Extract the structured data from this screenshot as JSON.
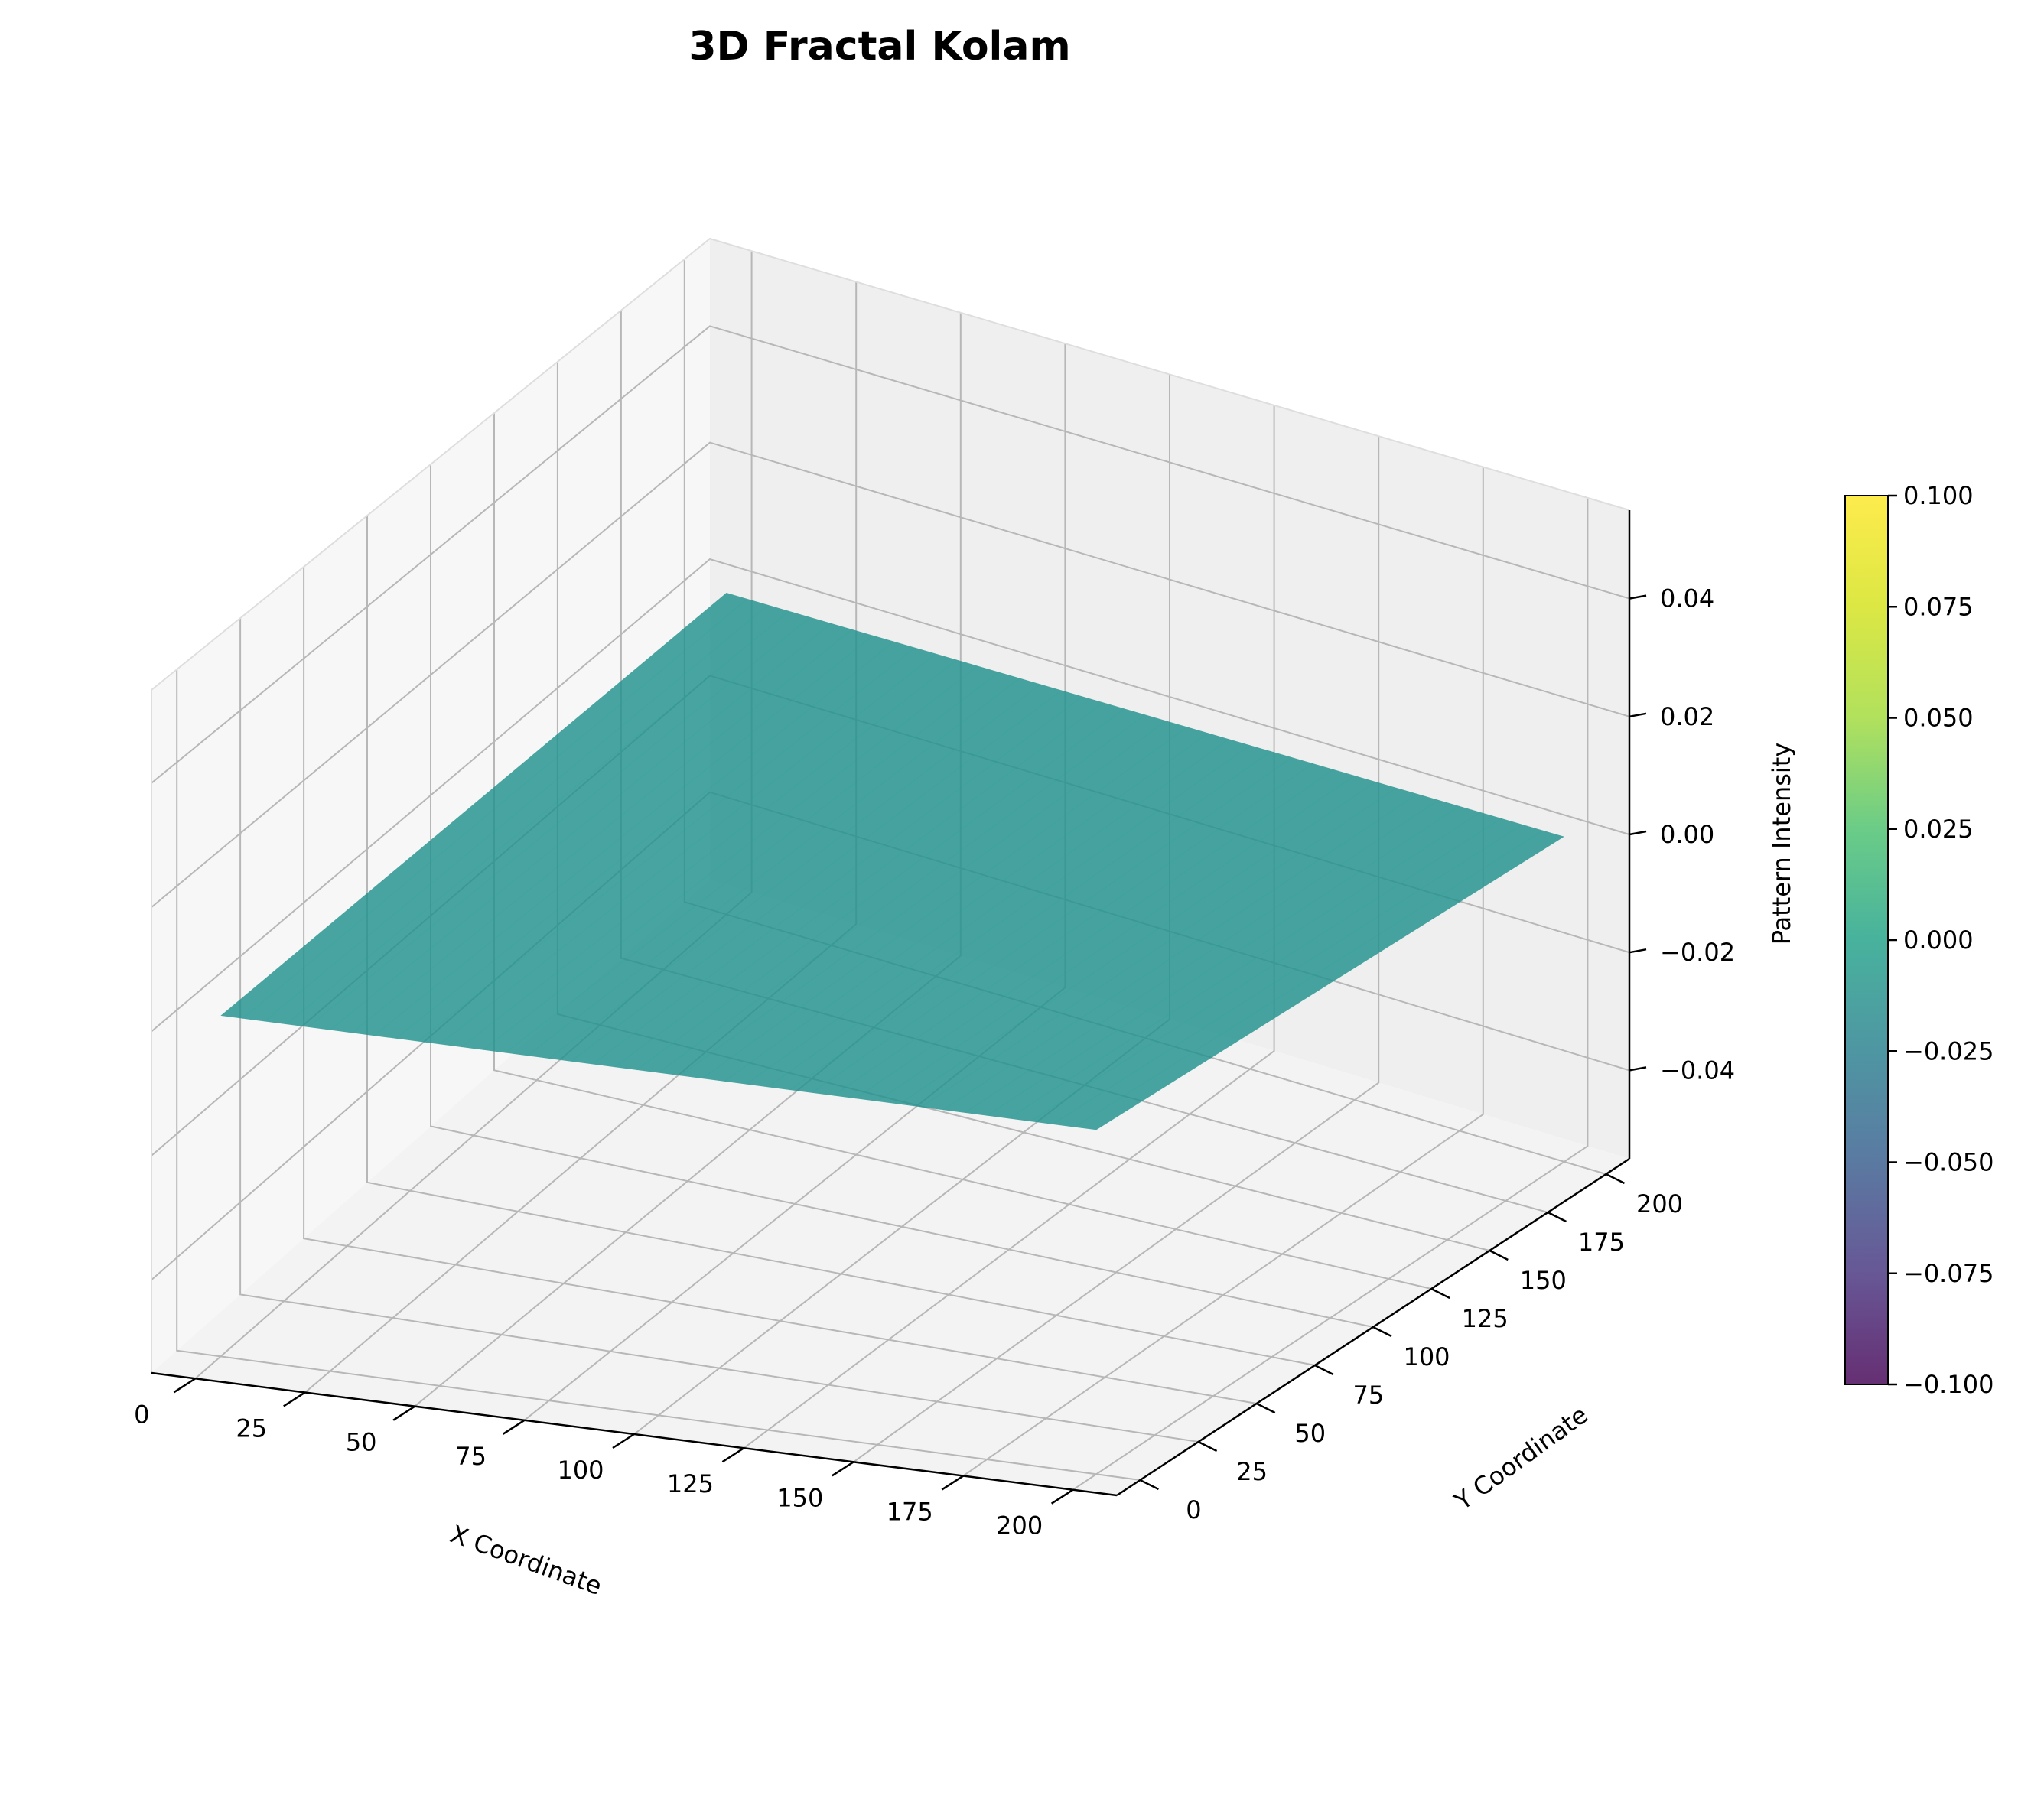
{
  "chart_data": {
    "type": "surface3d",
    "title": "3D Fractal Kolam",
    "xlabel": "X Coordinate",
    "ylabel": "Y Coordinate",
    "zlabel": "Pattern Intensity",
    "x_ticks": [
      0,
      25,
      50,
      75,
      100,
      125,
      150,
      175,
      200
    ],
    "y_ticks": [
      0,
      25,
      50,
      75,
      100,
      125,
      150,
      175,
      200
    ],
    "z_ticks": [
      -0.04,
      -0.02,
      0.0,
      0.02,
      0.04
    ],
    "z_tick_labels": [
      "−0.04",
      "−0.02",
      "0.00",
      "0.02",
      "0.04"
    ],
    "xlim": [
      -10,
      210
    ],
    "ylim": [
      -10,
      210
    ],
    "zlim": [
      -0.055,
      0.055
    ],
    "surface": {
      "x_range": [
        0,
        200
      ],
      "y_range": [
        0,
        200
      ],
      "z_value": 0.0,
      "color": "#21918c",
      "opacity": 0.82
    },
    "colorbar": {
      "colormap": "viridis",
      "range": [
        -0.1,
        0.1
      ],
      "ticks": [
        -0.1,
        -0.075,
        -0.05,
        -0.025,
        0.0,
        0.025,
        0.05,
        0.075,
        0.1
      ],
      "tick_labels": [
        "−0.100",
        "−0.075",
        "−0.050",
        "−0.025",
        "0.000",
        "0.025",
        "0.050",
        "0.075",
        "0.100"
      ],
      "opacity": 0.82
    },
    "grid": true,
    "colors": {
      "pane_left": "#f7f7f7",
      "pane_right": "#efefef",
      "pane_floor": "#f3f3f3",
      "grid": "#b7b7b7"
    }
  }
}
